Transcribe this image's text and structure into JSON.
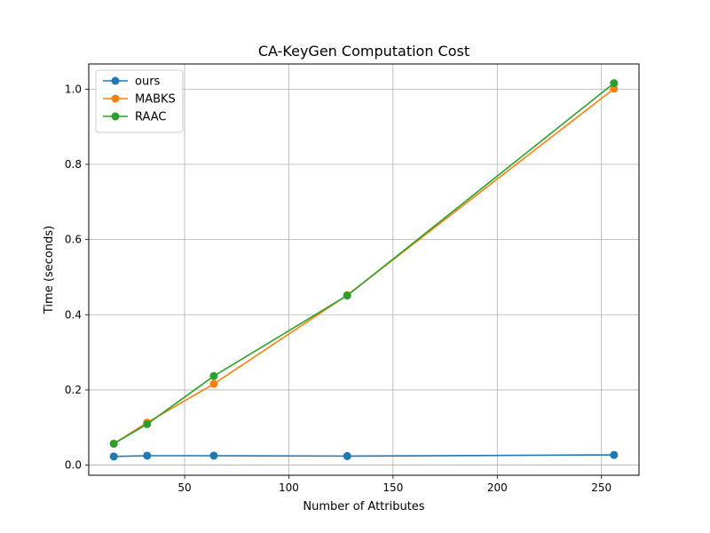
{
  "chart_data": {
    "type": "line",
    "title": "CA-KeyGen Computation Cost",
    "xlabel": "Number of Attributes",
    "ylabel": "Time (seconds)",
    "xlim": [
      4.0,
      268.0
    ],
    "ylim": [
      -0.027,
      1.067
    ],
    "xticks": [
      50,
      100,
      150,
      200,
      250
    ],
    "yticks": [
      0.0,
      0.2,
      0.4,
      0.6,
      0.8,
      1.0
    ],
    "xtick_labels": [
      "50",
      "100",
      "150",
      "200",
      "250"
    ],
    "ytick_labels": [
      "0.0",
      "0.2",
      "0.4",
      "0.6",
      "0.8",
      "1.0"
    ],
    "grid": true,
    "legend_position": "top-left",
    "x": [
      16,
      32,
      64,
      128,
      256
    ],
    "series": [
      {
        "name": "ours",
        "color": "#1f77b4",
        "values": [
          0.023,
          0.025,
          0.025,
          0.024,
          0.027
        ]
      },
      {
        "name": "MABKS",
        "color": "#ff7f0e",
        "values": [
          0.057,
          0.113,
          0.216,
          0.452,
          1.001
        ]
      },
      {
        "name": "RAAC",
        "color": "#2ca02c",
        "values": [
          0.057,
          0.109,
          0.237,
          0.451,
          1.016
        ]
      }
    ]
  }
}
